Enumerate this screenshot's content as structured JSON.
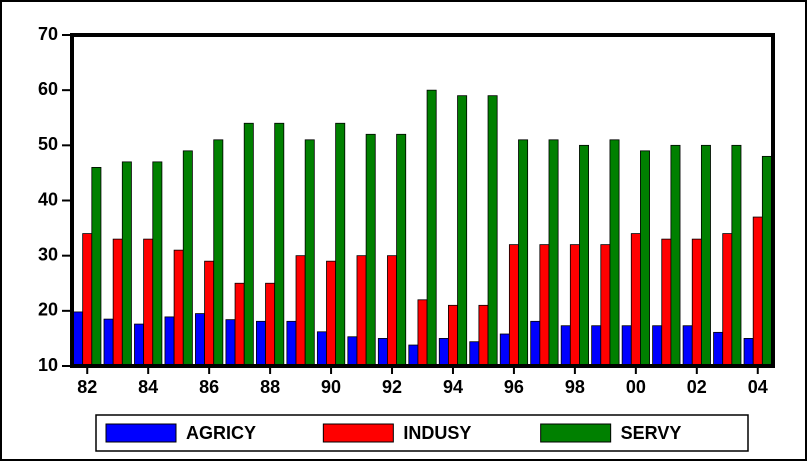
{
  "chart_data": {
    "type": "bar",
    "categories": [
      "82",
      null,
      "84",
      null,
      "86",
      null,
      "88",
      null,
      "90",
      null,
      "92",
      null,
      "94",
      null,
      "96",
      null,
      "98",
      null,
      "00",
      null,
      "02",
      null,
      "04"
    ],
    "series": [
      {
        "name": "AGRICY",
        "color": "#0000ff",
        "values": [
          19.8,
          18.5,
          17.6,
          18.9,
          19.5,
          18.4,
          18.1,
          18.1,
          16.2,
          15.3,
          15.0,
          13.8,
          15.0,
          14.4,
          15.8,
          18.1,
          17.3,
          17.3,
          17.3,
          17.3,
          17.3,
          16.1,
          15.0
        ]
      },
      {
        "name": "INDUSY",
        "color": "#ff0000",
        "values": [
          34,
          33,
          33,
          31,
          29,
          25,
          25,
          30,
          29,
          30,
          30,
          22,
          21,
          21,
          32,
          32,
          32,
          32,
          34,
          33,
          33,
          34,
          37
        ]
      },
      {
        "name": "SERVY",
        "color": "#008000",
        "values": [
          46,
          47,
          47,
          49,
          51,
          54,
          54,
          51,
          54,
          52,
          52,
          60,
          59,
          59,
          51,
          51,
          50,
          51,
          49,
          50,
          50,
          50,
          48
        ]
      }
    ],
    "ylim": [
      10,
      70
    ],
    "yticks": [
      10,
      20,
      30,
      40,
      50,
      60,
      70
    ],
    "legend": "bottom",
    "grid": false
  }
}
